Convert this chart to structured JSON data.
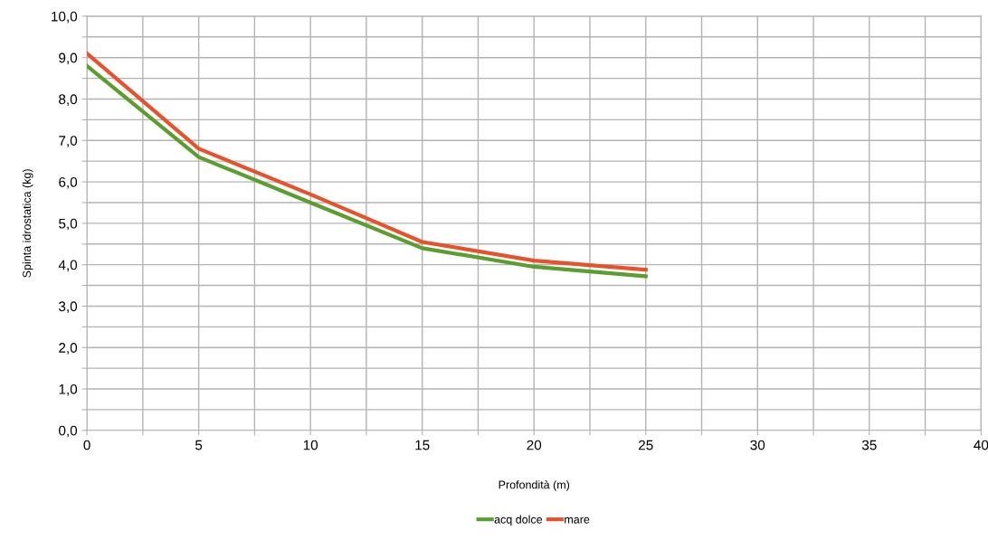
{
  "chart_data": {
    "type": "line",
    "xlabel": "Profondità (m)",
    "ylabel": "Spinta idrostatica (kg)",
    "x": [
      0,
      5,
      10,
      15,
      20,
      25
    ],
    "series": [
      {
        "name": "acq dolce",
        "color": "#5a9e2f",
        "values": [
          8.8,
          6.6,
          5.5,
          4.4,
          3.95,
          3.72
        ]
      },
      {
        "name": "mare",
        "color": "#e8512a",
        "values": [
          9.1,
          6.8,
          5.7,
          4.55,
          4.1,
          3.88
        ]
      }
    ],
    "xlim": [
      0,
      40
    ],
    "xticks": [
      0,
      {
        "value": 2.5,
        "label": null
      },
      5,
      {
        "value": 7.5,
        "label": null
      },
      10,
      {
        "value": 12.5,
        "label": null
      },
      15,
      {
        "value": 17.5,
        "label": null
      },
      20,
      {
        "value": 22.5,
        "label": null
      },
      25,
      {
        "value": 27.5,
        "label": null
      },
      30,
      {
        "value": 32.5,
        "label": null
      },
      35,
      {
        "value": 37.5,
        "label": null
      },
      40
    ],
    "ylim": [
      0,
      10
    ],
    "yticks": [
      {
        "value": 0,
        "label": "0,0"
      },
      {
        "value": 0.5,
        "label": null
      },
      {
        "value": 1,
        "label": "1,0"
      },
      {
        "value": 1.5,
        "label": null
      },
      {
        "value": 2,
        "label": "2,0"
      },
      {
        "value": 2.5,
        "label": null
      },
      {
        "value": 3,
        "label": "3,0"
      },
      {
        "value": 3.5,
        "label": null
      },
      {
        "value": 4,
        "label": "4,0"
      },
      {
        "value": 4.5,
        "label": null
      },
      {
        "value": 5,
        "label": "5,0"
      },
      {
        "value": 5.5,
        "label": null
      },
      {
        "value": 6,
        "label": "6,0"
      },
      {
        "value": 6.5,
        "label": null
      },
      {
        "value": 7,
        "label": "7,0"
      },
      {
        "value": 7.5,
        "label": null
      },
      {
        "value": 8,
        "label": "8,0"
      },
      {
        "value": 8.5,
        "label": null
      },
      {
        "value": 9,
        "label": "9,0"
      },
      {
        "value": 9.5,
        "label": null
      },
      {
        "value": 10,
        "label": "10,0"
      }
    ],
    "grid": true,
    "legend": "bottom",
    "marker": "none",
    "line_style": "solid"
  }
}
